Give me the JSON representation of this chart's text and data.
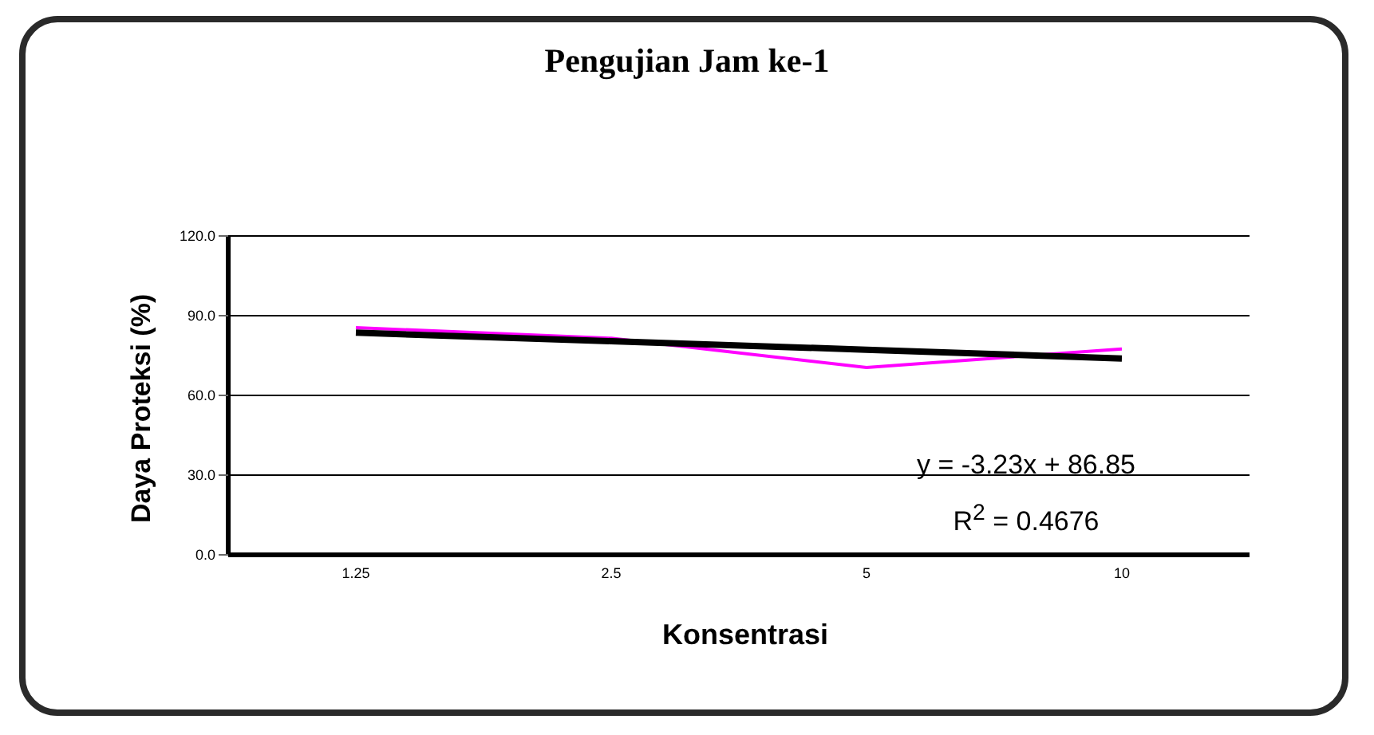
{
  "chart_data": {
    "type": "line",
    "title": "Pengujian Jam ke-1",
    "xlabel": "Konsentrasi",
    "ylabel": "Daya Proteksi (%)",
    "categories": [
      "1.25",
      "2.5",
      "5",
      "10"
    ],
    "series": [
      {
        "type": "line",
        "color": "#ff00ff",
        "values": [
          85.5,
          81.5,
          70.5,
          77.5
        ]
      },
      {
        "type": "line",
        "color": "#000000",
        "values": [
          83.6,
          80.4,
          77.2,
          73.9
        ]
      }
    ],
    "ylim": [
      0,
      120
    ],
    "yticks": [
      {
        "value": 0,
        "label": "0.0"
      },
      {
        "value": 30,
        "label": "30.0"
      },
      {
        "value": 60,
        "label": "60.0"
      },
      {
        "value": 90,
        "label": "90.0"
      },
      {
        "value": 120,
        "label": "120.0"
      }
    ],
    "grid": "y",
    "legend": false,
    "marker": "none",
    "line_style": "solid",
    "annotations": [
      "y = -3.23x + 86.85",
      "R$^{2}$ = 0.4676"
    ]
  }
}
